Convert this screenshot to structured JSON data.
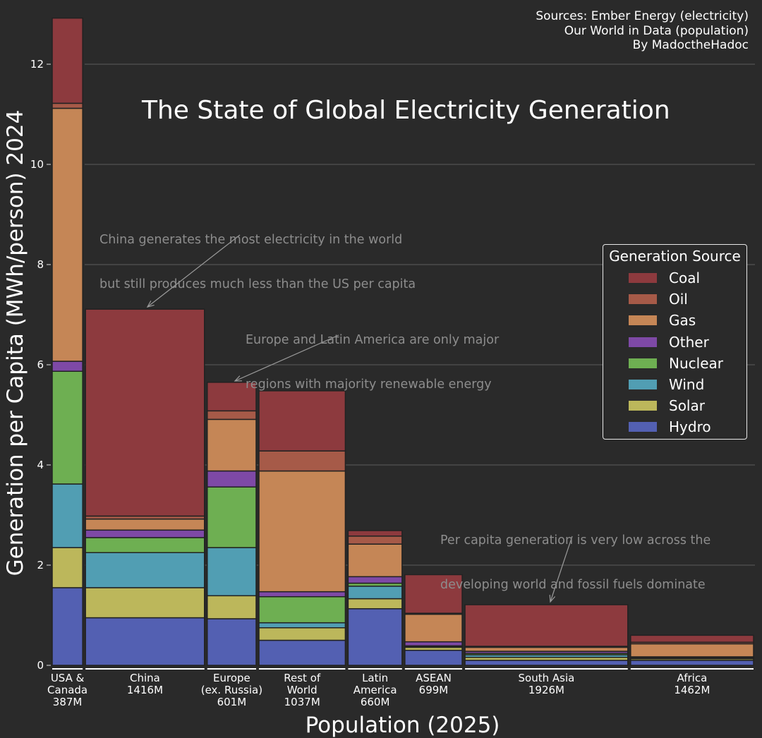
{
  "sources": {
    "line1": "Sources: Ember Energy (electricity)",
    "line2": "Our World in Data (population)",
    "line3": "By MadoctheHadoc"
  },
  "legend": {
    "title": "Generation Source"
  },
  "annotations": [
    {
      "line1": "China generates the most electricity in the world",
      "line2": "but still produces much less than the US per capita"
    },
    {
      "line1": "Europe and Latin America are only major",
      "line2": "regions with majority renewable energy"
    },
    {
      "line1": "Per capita generation is very low across the",
      "line2": "developing world and fossil fuels dominate"
    }
  ],
  "chart_data": {
    "type": "bar",
    "subtype": "variable-width stacked bar (Marimekko)",
    "title": "The State of Global Electricity Generation",
    "xlabel": "Population (2025)",
    "ylabel": "Generation per Capita (MWh/person) 2024",
    "ylim": [
      0,
      13
    ],
    "yticks": [
      0,
      2,
      4,
      6,
      8,
      10,
      12
    ],
    "grid": true,
    "legend_position": "right",
    "sources_order": [
      "Hydro",
      "Solar",
      "Wind",
      "Nuclear",
      "Other",
      "Gas",
      "Oil",
      "Coal"
    ],
    "legend_order": [
      "Coal",
      "Oil",
      "Gas",
      "Other",
      "Nuclear",
      "Wind",
      "Solar",
      "Hydro"
    ],
    "colors": {
      "Coal": "#8d3a3e",
      "Oil": "#a65a48",
      "Gas": "#c58656",
      "Other": "#7e49a6",
      "Nuclear": "#6eaf52",
      "Wind": "#519eb3",
      "Solar": "#bcb75b",
      "Hydro": "#5360b2"
    },
    "categories": [
      {
        "label": [
          "USA &",
          "Canada"
        ],
        "population": "387M",
        "population_m": 387,
        "values": {
          "Hydro": 1.55,
          "Solar": 0.8,
          "Wind": 1.27,
          "Nuclear": 2.25,
          "Other": 0.2,
          "Gas": 5.05,
          "Oil": 0.1,
          "Coal": 1.7
        }
      },
      {
        "label": [
          "China"
        ],
        "population": "1416M",
        "population_m": 1416,
        "values": {
          "Hydro": 0.95,
          "Solar": 0.6,
          "Wind": 0.7,
          "Nuclear": 0.3,
          "Other": 0.15,
          "Gas": 0.22,
          "Oil": 0.06,
          "Coal": 4.13
        }
      },
      {
        "label": [
          "Europe",
          "(ex. Russia)"
        ],
        "population": "601M",
        "population_m": 601,
        "values": {
          "Hydro": 0.93,
          "Solar": 0.46,
          "Wind": 0.96,
          "Nuclear": 1.21,
          "Other": 0.32,
          "Gas": 1.03,
          "Oil": 0.17,
          "Coal": 0.57
        }
      },
      {
        "label": [
          "Rest of",
          "World"
        ],
        "population": "1037M",
        "population_m": 1037,
        "values": {
          "Hydro": 0.5,
          "Solar": 0.25,
          "Wind": 0.1,
          "Nuclear": 0.52,
          "Other": 0.1,
          "Gas": 2.41,
          "Oil": 0.4,
          "Coal": 1.2
        }
      },
      {
        "label": [
          "Latin",
          "America"
        ],
        "population": "660M",
        "population_m": 660,
        "values": {
          "Hydro": 1.13,
          "Solar": 0.2,
          "Wind": 0.25,
          "Nuclear": 0.06,
          "Other": 0.13,
          "Gas": 0.65,
          "Oil": 0.16,
          "Coal": 0.11
        }
      },
      {
        "label": [
          "ASEAN"
        ],
        "population": "699M",
        "population_m": 699,
        "values": {
          "Hydro": 0.3,
          "Solar": 0.06,
          "Wind": 0.02,
          "Nuclear": 0.01,
          "Other": 0.08,
          "Gas": 0.55,
          "Oil": 0.02,
          "Coal": 0.77
        }
      },
      {
        "label": [
          "South Asia"
        ],
        "population": "1926M",
        "population_m": 1926,
        "values": {
          "Hydro": 0.1,
          "Solar": 0.06,
          "Wind": 0.05,
          "Nuclear": 0.03,
          "Other": 0.04,
          "Gas": 0.08,
          "Oil": 0.02,
          "Coal": 0.83
        }
      },
      {
        "label": [
          "Africa"
        ],
        "population": "1462M",
        "population_m": 1462,
        "values": {
          "Hydro": 0.1,
          "Solar": 0.03,
          "Wind": 0.02,
          "Nuclear": 0.01,
          "Other": 0.01,
          "Gas": 0.26,
          "Oil": 0.03,
          "Coal": 0.14
        }
      }
    ]
  }
}
